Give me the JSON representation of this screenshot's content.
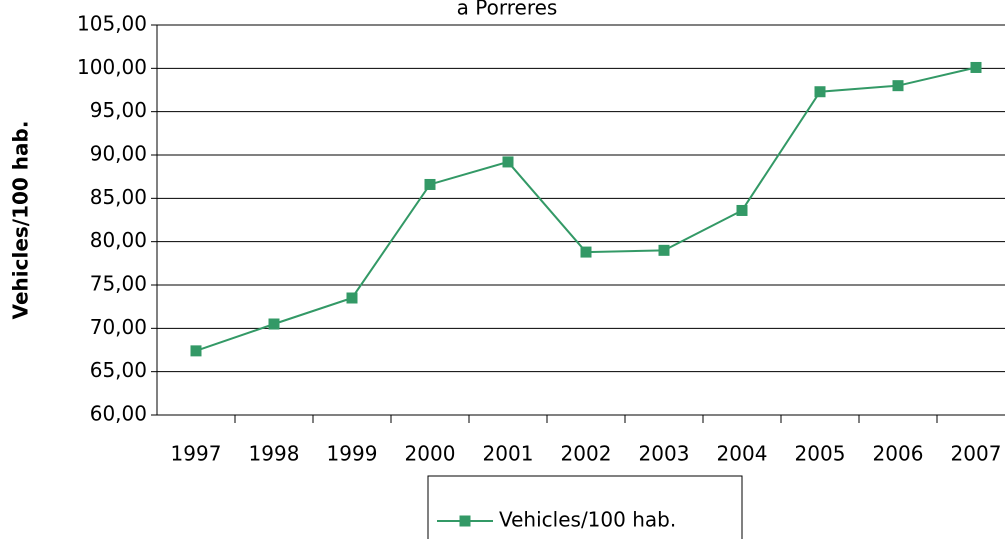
{
  "chart_data": {
    "type": "line",
    "title": "a Porreres",
    "y_label": "Vehicles/100 hab.",
    "categories": [
      "1997",
      "1998",
      "1999",
      "2000",
      "2001",
      "2002",
      "2003",
      "2004",
      "2005",
      "2006",
      "2007"
    ],
    "series": [
      {
        "name": "Vehicles/100 hab.",
        "color": "#339966",
        "values": [
          67.4,
          70.5,
          73.5,
          86.6,
          89.2,
          78.8,
          79.0,
          83.6,
          97.3,
          98.0,
          100.1
        ]
      }
    ],
    "ylim": [
      60,
      105
    ],
    "yticks": [
      {
        "value": 60,
        "label": "60,00"
      },
      {
        "value": 65,
        "label": "65,00"
      },
      {
        "value": 70,
        "label": "70,00"
      },
      {
        "value": 75,
        "label": "75,00"
      },
      {
        "value": 80,
        "label": "80,00"
      },
      {
        "value": 85,
        "label": "85,00"
      },
      {
        "value": 90,
        "label": "90,00"
      },
      {
        "value": 95,
        "label": "95,00"
      },
      {
        "value": 100,
        "label": "100,00"
      },
      {
        "value": 105,
        "label": "105,00"
      }
    ],
    "grid": true,
    "legend": "bottom"
  }
}
